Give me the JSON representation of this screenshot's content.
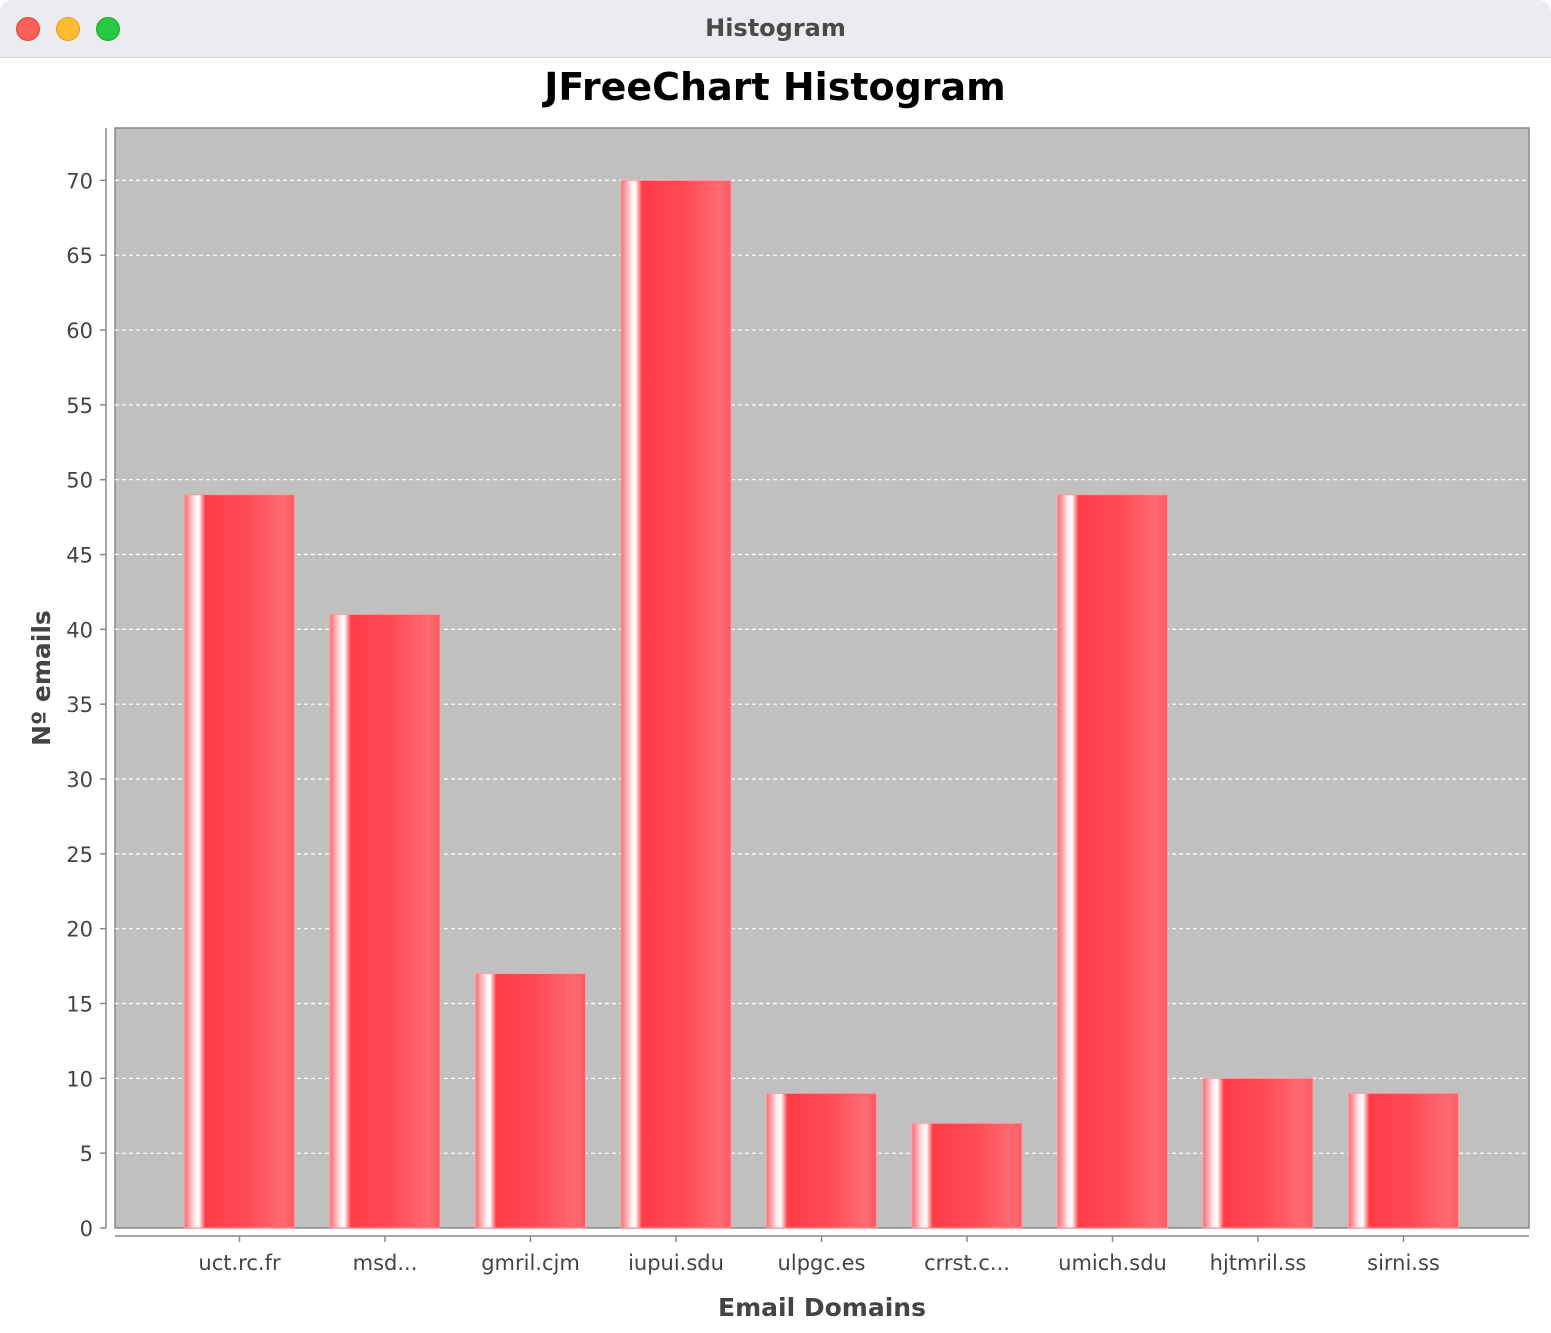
{
  "window": {
    "title": "Histogram",
    "buttons": [
      "close",
      "minimize",
      "maximize"
    ]
  },
  "colors": {
    "bar": "#ff4a55",
    "plot_background": "#c0c0c0",
    "gridline": "#ffffff"
  },
  "chart_data": {
    "type": "bar",
    "title": "JFreeChart Histogram",
    "xlabel": "Email Domains",
    "ylabel": "Nº emails",
    "categories": [
      "uct.rc.fr",
      "msd...",
      "gmril.cjm",
      "iupui.sdu",
      "ulpgc.es",
      "crrst.c...",
      "umich.sdu",
      "hjtmril.ss",
      "sirni.ss"
    ],
    "values": [
      49,
      41,
      17,
      70,
      9,
      7,
      49,
      10,
      9
    ],
    "ylim": [
      0,
      73.5
    ],
    "yticks": [
      0,
      5,
      10,
      15,
      20,
      25,
      30,
      35,
      40,
      45,
      50,
      55,
      60,
      65,
      70
    ],
    "grid": "horizontal dashed",
    "legend": "none"
  }
}
